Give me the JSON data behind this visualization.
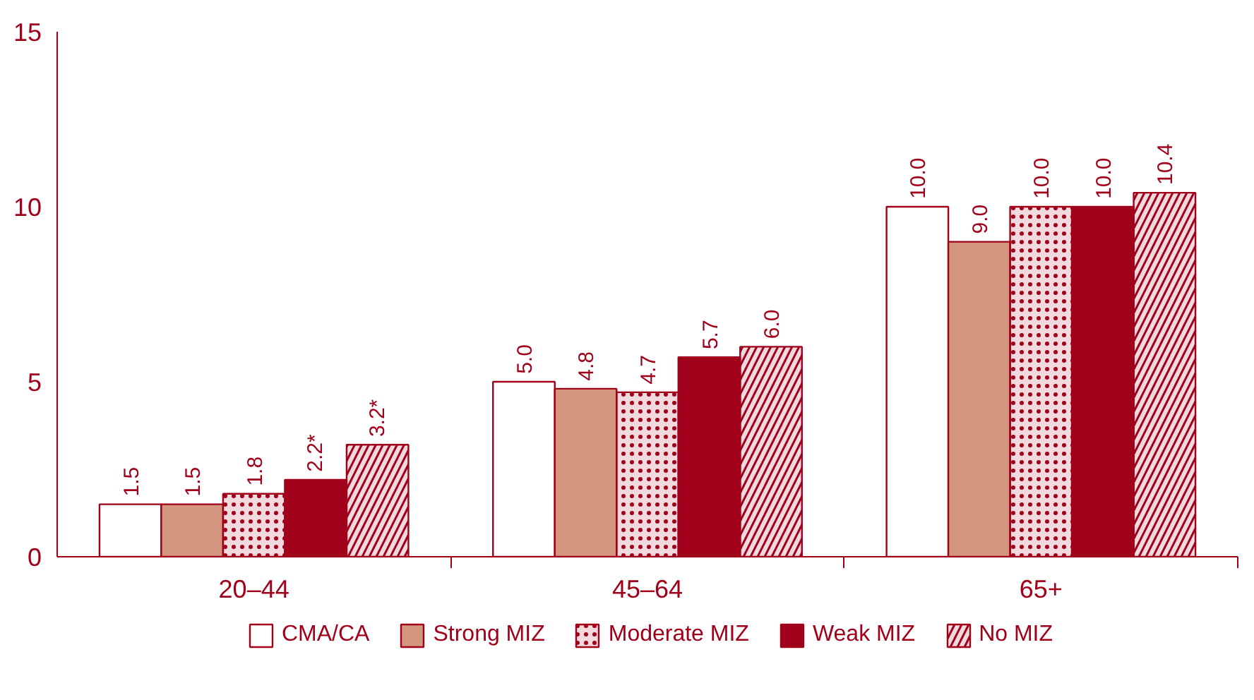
{
  "chart_data": {
    "type": "bar",
    "categories": [
      "20–44",
      "45–64",
      "65+"
    ],
    "series": [
      {
        "name": "CMA/CA",
        "color": "#ffffff",
        "values": [
          1.5,
          5.0,
          10.0
        ],
        "value_labels": [
          "1.5",
          "5.0",
          "10.0"
        ]
      },
      {
        "name": "Strong MIZ",
        "color": "#d4967f",
        "values": [
          1.5,
          4.8,
          9.0
        ],
        "value_labels": [
          "1.5",
          "4.8",
          "9.0"
        ]
      },
      {
        "name": "Moderate MIZ",
        "color": "#a0001a",
        "values": [
          1.8,
          4.7,
          10.0
        ],
        "value_labels": [
          "1.8",
          "4.7",
          "10.0"
        ]
      },
      {
        "name": "Weak MIZ",
        "color": "#a0001a",
        "values": [
          2.2,
          5.7,
          10.0
        ],
        "value_labels": [
          "2.2*",
          "5.7",
          "10.0"
        ]
      },
      {
        "name": "No MIZ",
        "color": "#a0001a",
        "values": [
          3.2,
          6.0,
          10.4
        ],
        "value_labels": [
          "3.2*",
          "6.0",
          "10.4"
        ]
      }
    ],
    "ylim": [
      0,
      15
    ],
    "yticks": [
      0,
      5,
      10,
      15
    ],
    "grid": false,
    "legend": "bottom"
  }
}
